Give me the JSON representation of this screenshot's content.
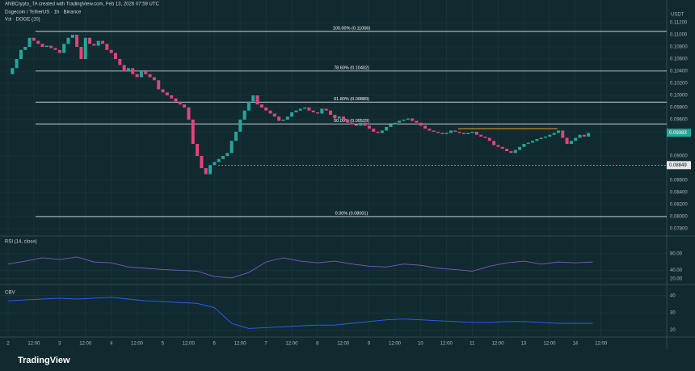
{
  "chart_data": {
    "type": "candlestick",
    "credit": "ANBCrypto_TA created with TradingView.com, Feb 13, 2026 07:59 UTC",
    "title": "Dogecoin / TetherUS · 1h · Binance",
    "volume_label": "Vol · DOGE (20)",
    "currency": "USDT",
    "watermark": "TradingView",
    "up_color": "#26a69a",
    "down_color": "#e0457b",
    "ylim": [
      0.0772,
      0.1128
    ],
    "yticks": [
      {
        "value": 0.112,
        "label": "0.11200"
      },
      {
        "value": 0.11,
        "label": "0.11000"
      },
      {
        "value": 0.108,
        "label": "0.10800"
      },
      {
        "value": 0.106,
        "label": "0.10600"
      },
      {
        "value": 0.104,
        "label": "0.10400"
      },
      {
        "value": 0.102,
        "label": "0.10200"
      },
      {
        "value": 0.1,
        "label": "0.10000"
      },
      {
        "value": 0.098,
        "label": "0.09800"
      },
      {
        "value": 0.096,
        "label": "0.09600"
      },
      {
        "value": 0.094,
        "label": "0.09400"
      },
      {
        "value": 0.09,
        "label": "0.09000"
      },
      {
        "value": 0.086,
        "label": "0.08600"
      },
      {
        "value": 0.084,
        "label": "0.08400"
      },
      {
        "value": 0.082,
        "label": "0.08200"
      },
      {
        "value": 0.08,
        "label": "0.08000"
      },
      {
        "value": 0.078,
        "label": "0.07800"
      }
    ],
    "x_labels": [
      "2",
      "12:00",
      "3",
      "12:00",
      "4",
      "12:00",
      "5",
      "12:00",
      "6",
      "12:00",
      "7",
      "12:00",
      "8",
      "12:00",
      "9",
      "12:00",
      "10",
      "12:00",
      "11",
      "12:00",
      "13",
      "12:00",
      "14",
      "12:00"
    ],
    "values": [
      0.1035,
      0.1045,
      0.106,
      0.1075,
      0.108,
      0.1095,
      0.109,
      0.1085,
      0.108,
      0.1082,
      0.1078,
      0.1075,
      0.107,
      0.1085,
      0.1095,
      0.11,
      0.108,
      0.106,
      0.1095,
      0.1085,
      0.1082,
      0.109,
      0.1085,
      0.1075,
      0.107,
      0.106,
      0.105,
      0.104,
      0.1045,
      0.1035,
      0.103,
      0.104,
      0.1035,
      0.103,
      0.1025,
      0.101,
      0.1005,
      0.1,
      0.0995,
      0.099,
      0.0985,
      0.098,
      0.096,
      0.092,
      0.09,
      0.088,
      0.087,
      0.0885,
      0.089,
      0.0895,
      0.09,
      0.0905,
      0.0925,
      0.094,
      0.096,
      0.0975,
      0.099,
      0.1,
      0.0985,
      0.098,
      0.0975,
      0.097,
      0.0965,
      0.0958,
      0.096,
      0.0965,
      0.0972,
      0.0975,
      0.0978,
      0.098,
      0.0975,
      0.0972,
      0.097,
      0.0978,
      0.0975,
      0.0968,
      0.0962,
      0.0965,
      0.096,
      0.0955,
      0.0952,
      0.095,
      0.0955,
      0.095,
      0.0945,
      0.094,
      0.0938,
      0.0942,
      0.0948,
      0.0952,
      0.0955,
      0.0958,
      0.096,
      0.0962,
      0.0958,
      0.0955,
      0.095,
      0.0945,
      0.0942,
      0.094,
      0.0938,
      0.0936,
      0.0938,
      0.0942,
      0.094,
      0.0938,
      0.0936,
      0.0938,
      0.094,
      0.0935,
      0.0932,
      0.093,
      0.0925,
      0.0918,
      0.0915,
      0.0912,
      0.0908,
      0.0905,
      0.091,
      0.0915,
      0.092,
      0.0922,
      0.0925,
      0.0928,
      0.093,
      0.0932,
      0.0935,
      0.0938,
      0.0942,
      0.093,
      0.092,
      0.0925,
      0.093,
      0.0935,
      0.0932,
      0.0938
    ],
    "fib_levels": [
      {
        "label": "100.00% (0.11056)",
        "value": 0.11056
      },
      {
        "label": "78.60% (0.10402)",
        "value": 0.10402
      },
      {
        "label": "61.80% (0.09889)",
        "value": 0.09889
      },
      {
        "label": "50.00% (0.09529)",
        "value": 0.09529
      },
      {
        "label": "0.00% (0.08001)",
        "value": 0.08001
      }
    ],
    "resistance": {
      "value": 0.0945,
      "color": "#f59c1a"
    },
    "last_price": {
      "value": 0.09383,
      "label": "0.09383"
    },
    "low_mark": {
      "value": 0.08849,
      "label": "0.08849"
    },
    "rsi": {
      "type": "line",
      "title": "RSI (14, close)",
      "color": "#7e57c2",
      "ylim": [
        10,
        95
      ],
      "yticks": [
        {
          "value": 80,
          "label": "80.00"
        },
        {
          "value": 40,
          "label": "40.00"
        },
        {
          "value": 20,
          "label": "20.00"
        }
      ],
      "values": [
        55,
        62,
        70,
        66,
        72,
        60,
        58,
        48,
        45,
        42,
        40,
        38,
        25,
        22,
        35,
        60,
        70,
        62,
        58,
        62,
        55,
        50,
        48,
        55,
        52,
        45,
        42,
        38,
        50,
        58,
        62,
        55,
        60,
        58,
        60
      ]
    },
    "obv": {
      "type": "line",
      "title": "OBV",
      "color": "#2962ff",
      "ylim": [
        17,
        45
      ],
      "yticks": [
        40,
        30,
        20
      ],
      "values": [
        37,
        37.5,
        38,
        38.5,
        38,
        38.5,
        39,
        38,
        37,
        36.5,
        36,
        35.5,
        33,
        24,
        21,
        21.5,
        22,
        22.5,
        23,
        23,
        24,
        25,
        26,
        26.5,
        26,
        25.5,
        25,
        24.5,
        24.5,
        25,
        25,
        24.5,
        24,
        24,
        24
      ]
    }
  }
}
